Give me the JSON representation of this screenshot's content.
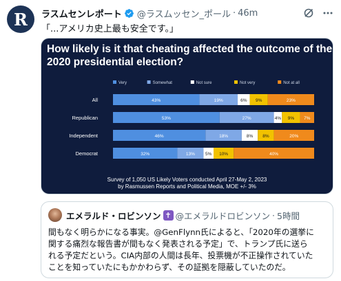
{
  "tweet": {
    "avatar_letter": "R",
    "author_name": "ラスムセンレポート",
    "handle": "@ラスムッセン_ポール",
    "separator": "·",
    "time": "46m",
    "text": "「...アメリカ史上最も安全です。」"
  },
  "chart_data": {
    "type": "bar",
    "stacked": true,
    "orientation": "horizontal",
    "title": "How likely is it that cheating affected the outcome of the 2020 presidential election?",
    "title_lines": [
      "How likely is it that cheating affected the outcome of the",
      "2020 presidential election?"
    ],
    "categories": [
      "All",
      "Republican",
      "Independent",
      "Democrat"
    ],
    "series": [
      {
        "name": "Very",
        "color": "#4f8fe0",
        "values": [
          43,
          53,
          46,
          32
        ]
      },
      {
        "name": "Somewhat",
        "color": "#7fa8e6",
        "values": [
          19,
          27,
          18,
          13
        ]
      },
      {
        "name": "Not sure",
        "color": "#ffffff",
        "values": [
          6,
          4,
          8,
          5
        ]
      },
      {
        "name": "Not very",
        "color": "#f2c200",
        "values": [
          9,
          9,
          8,
          10
        ]
      },
      {
        "name": "Not at all",
        "color": "#f08a1c",
        "values": [
          23,
          7,
          20,
          40
        ]
      }
    ],
    "value_labels": [
      [
        "43%",
        "19%",
        "6%",
        "9%",
        "23%"
      ],
      [
        "53%",
        "27%",
        "4%",
        "9%",
        "7%"
      ],
      [
        "46%",
        "18%",
        "8%",
        "8%",
        "20%"
      ],
      [
        "32%",
        "13%",
        "5%",
        "10%",
        "40%"
      ]
    ],
    "legend_position": "top-left",
    "xlim": [
      0,
      100
    ],
    "source_lines": [
      "Survey of 1,050 US Likely Voters conducted April 27-May 2, 2023",
      "by Rasmussen Reports and Political Media, MOE +/- 3%"
    ]
  },
  "quote": {
    "author_name": "エメラルド・ロビンソン",
    "badge_symbol": "✝",
    "handle": "@エメラルドロビンソン",
    "separator": "·",
    "time": "5時間",
    "text_lines": [
      "間もなく明らかになる事実。@GenFlynn氏によると、「2020年の選挙に",
      "関する痛烈な報告書が間もなく発表される予定」で、トランプ氏に送ら",
      "れる予定だという。CIA内部の人間は長年、投票機が不正操作されていた",
      "ことを知っていたにもかかわらず、その証拠を隠蔽していたのだ。"
    ]
  },
  "colors": {
    "chart_background": "#0f1c3d",
    "verified_blue": "#1d9bf0",
    "badge_purple": "#7e57c2"
  },
  "icons": {
    "verified": "verified-badge-icon",
    "grok": "grok-icon",
    "more": "more-icon"
  }
}
